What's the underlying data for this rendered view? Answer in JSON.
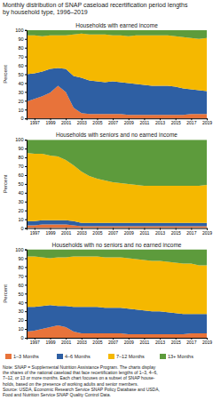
{
  "chart_data": [
    {
      "type": "area",
      "stacked": true,
      "title": "Monthly distribution of SNAP caseload recertification period lengths\nby household type, 1996–2019",
      "subtitle": "Households with earned income",
      "legend": "bottom",
      "ylabel": "Percent",
      "x": [
        1996,
        1997,
        1998,
        1999,
        2000,
        2001,
        2002,
        2003,
        2004,
        2005,
        2006,
        2007,
        2008,
        2009,
        2010,
        2011,
        2012,
        2013,
        2014,
        2015,
        2016,
        2017,
        2018,
        2019
      ],
      "xlim": [
        1996,
        2019
      ],
      "xticks": [
        1997,
        1999,
        2001,
        2003,
        2005,
        2007,
        2009,
        2011,
        2013,
        2015,
        2017,
        2019
      ],
      "ylim": [
        0,
        100
      ],
      "yticks": [
        0,
        10,
        20,
        30,
        40,
        50,
        60,
        70,
        80,
        90,
        100
      ],
      "series": [
        {
          "name": "1–3 Months",
          "color": "#E8733A",
          "values": [
            19,
            22,
            25,
            29,
            37,
            30,
            12,
            6,
            5,
            5,
            5,
            5,
            5,
            4,
            4,
            4,
            4,
            4,
            4,
            4,
            4,
            5,
            5,
            5
          ]
        },
        {
          "name": "4–6 Months",
          "color": "#2E5FA3",
          "values": [
            31,
            29,
            28,
            27,
            20,
            26,
            36,
            40,
            38,
            37,
            36,
            37,
            36,
            36,
            35,
            34,
            33,
            33,
            33,
            32,
            30,
            28,
            27,
            26
          ]
        },
        {
          "name": "7–12 Months",
          "color": "#F5B800",
          "values": [
            44,
            43,
            40,
            38,
            37,
            38,
            47,
            50,
            52,
            53,
            54,
            52,
            53,
            53,
            55,
            56,
            57,
            57,
            57,
            57,
            58,
            58,
            58,
            60
          ]
        },
        {
          "name": "13+ Months",
          "color": "#5D9B3C",
          "values": [
            6,
            6,
            7,
            6,
            6,
            6,
            5,
            4,
            5,
            5,
            5,
            6,
            6,
            7,
            6,
            6,
            6,
            6,
            6,
            7,
            8,
            9,
            10,
            9
          ]
        }
      ]
    },
    {
      "type": "area",
      "stacked": true,
      "subtitle": "Households with seniors and no earned income",
      "ylabel": "Percent",
      "x": [
        1996,
        1997,
        1998,
        1999,
        2000,
        2001,
        2002,
        2003,
        2004,
        2005,
        2006,
        2007,
        2008,
        2009,
        2010,
        2011,
        2012,
        2013,
        2014,
        2015,
        2016,
        2017,
        2018,
        2019
      ],
      "xlim": [
        1996,
        2019
      ],
      "xticks": [
        1997,
        1999,
        2001,
        2003,
        2005,
        2007,
        2009,
        2011,
        2013,
        2015,
        2017,
        2019
      ],
      "ylim": [
        0,
        100
      ],
      "yticks": [
        0,
        10,
        20,
        30,
        40,
        50,
        60,
        70,
        80,
        90,
        100
      ],
      "series": [
        {
          "name": "1–3 Months",
          "color": "#E8733A",
          "values": [
            3,
            3,
            4,
            4,
            4,
            4,
            3,
            2,
            2,
            2,
            2,
            2,
            2,
            2,
            2,
            2,
            2,
            2,
            2,
            2,
            2,
            2,
            2,
            2
          ]
        },
        {
          "name": "4–6 Months",
          "color": "#2E5FA3",
          "values": [
            5,
            5,
            5,
            5,
            5,
            5,
            5,
            4,
            4,
            4,
            4,
            4,
            4,
            4,
            4,
            4,
            4,
            4,
            4,
            4,
            4,
            4,
            4,
            4
          ]
        },
        {
          "name": "7–12 Months",
          "color": "#F5B800",
          "values": [
            77,
            76,
            75,
            73,
            72,
            68,
            63,
            58,
            53,
            50,
            48,
            46,
            45,
            44,
            43,
            42,
            42,
            42,
            42,
            42,
            42,
            42,
            42,
            43
          ]
        },
        {
          "name": "13+ Months",
          "color": "#5D9B3C",
          "values": [
            15,
            16,
            16,
            18,
            19,
            23,
            29,
            36,
            41,
            44,
            46,
            48,
            49,
            50,
            51,
            52,
            52,
            52,
            52,
            52,
            52,
            52,
            52,
            51
          ]
        }
      ]
    },
    {
      "type": "area",
      "stacked": true,
      "subtitle": "Households with no seniors and no earned income",
      "ylabel": "Percent",
      "annotations": [
        "Note: SNAP = Supplemental Nutrition Assistance Program. The charts display\nthe shares of the national caseload that face recertification lengths of 1–3, 4–6,\n7–12, or 13 or more months. Each chart focuses on a subset of SNAP house-\nholds, based on the presence of working adults and senior members.\nSource: USDA, Economic Research Service SNAP Policy Database and USDA,\nFood and Nutrition Service SNAP Quality Control Data."
      ],
      "x": [
        1996,
        1997,
        1998,
        1999,
        2000,
        2001,
        2002,
        2003,
        2004,
        2005,
        2006,
        2007,
        2008,
        2009,
        2010,
        2011,
        2012,
        2013,
        2014,
        2015,
        2016,
        2017,
        2018,
        2019
      ],
      "xlim": [
        1996,
        2019
      ],
      "xticks": [
        1997,
        1999,
        2001,
        2003,
        2005,
        2007,
        2009,
        2011,
        2013,
        2015,
        2017,
        2019
      ],
      "ylim": [
        0,
        100
      ],
      "yticks": [
        0,
        10,
        20,
        30,
        40,
        50,
        60,
        70,
        80,
        90,
        100
      ],
      "series": [
        {
          "name": "1–3 Months",
          "color": "#E8733A",
          "values": [
            7,
            8,
            10,
            12,
            14,
            12,
            7,
            5,
            5,
            5,
            5,
            5,
            5,
            4,
            4,
            4,
            4,
            4,
            4,
            4,
            4,
            5,
            5,
            5
          ]
        },
        {
          "name": "4–6 Months",
          "color": "#2E5FA3",
          "values": [
            28,
            27,
            26,
            25,
            22,
            24,
            28,
            30,
            30,
            30,
            29,
            29,
            29,
            29,
            28,
            27,
            26,
            26,
            25,
            24,
            23,
            22,
            22,
            22
          ]
        },
        {
          "name": "7–12 Months",
          "color": "#F5B800",
          "values": [
            57,
            57,
            55,
            53,
            55,
            55,
            57,
            57,
            57,
            57,
            57,
            57,
            57,
            57,
            57,
            57,
            57,
            57,
            57,
            57,
            57,
            57,
            55,
            55
          ]
        },
        {
          "name": "13+ Months",
          "color": "#5D9B3C",
          "values": [
            8,
            8,
            9,
            10,
            9,
            9,
            8,
            8,
            8,
            8,
            9,
            9,
            9,
            10,
            11,
            12,
            13,
            13,
            14,
            15,
            16,
            16,
            18,
            18
          ]
        }
      ]
    }
  ]
}
